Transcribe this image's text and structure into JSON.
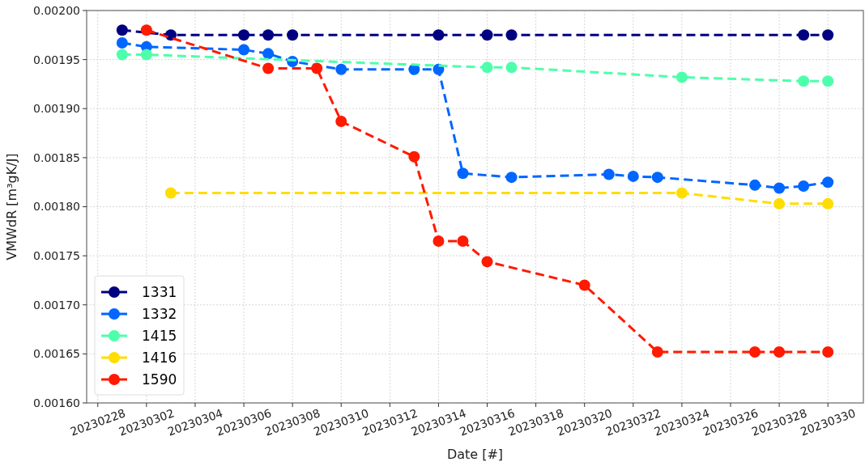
{
  "chart_data": {
    "type": "line",
    "xlabel": "Date [#]",
    "ylabel": "VMWdR [m³gK/J]",
    "xlim": [
      "2023-02-27T13:00",
      "2023-03-31T11:00"
    ],
    "xticks": [
      {
        "value": "2023-02-28",
        "label": "20230228"
      },
      {
        "value": "2023-03-02",
        "label": "20230302"
      },
      {
        "value": "2023-03-04",
        "label": "20230304"
      },
      {
        "value": "2023-03-06",
        "label": "20230306"
      },
      {
        "value": "2023-03-08",
        "label": "20230308"
      },
      {
        "value": "2023-03-10",
        "label": "20230310"
      },
      {
        "value": "2023-03-12",
        "label": "20230312"
      },
      {
        "value": "2023-03-14",
        "label": "20230314"
      },
      {
        "value": "2023-03-16",
        "label": "20230316"
      },
      {
        "value": "2023-03-18",
        "label": "20230318"
      },
      {
        "value": "2023-03-20",
        "label": "20230320"
      },
      {
        "value": "2023-03-22",
        "label": "20230322"
      },
      {
        "value": "2023-03-24",
        "label": "20230324"
      },
      {
        "value": "2023-03-26",
        "label": "20230326"
      },
      {
        "value": "2023-03-28",
        "label": "20230328"
      },
      {
        "value": "2023-03-30",
        "label": "20230330"
      }
    ],
    "ylim": [
      0.0016,
      0.002
    ],
    "yticks": [
      {
        "value": 0.0016,
        "label": "0.00160"
      },
      {
        "value": 0.00165,
        "label": "0.00165"
      },
      {
        "value": 0.0017,
        "label": "0.00170"
      },
      {
        "value": 0.00175,
        "label": "0.00175"
      },
      {
        "value": 0.0018,
        "label": "0.00180"
      },
      {
        "value": 0.00185,
        "label": "0.00185"
      },
      {
        "value": 0.0019,
        "label": "0.00190"
      },
      {
        "value": 0.00195,
        "label": "0.00195"
      },
      {
        "value": 0.002,
        "label": "0.00200"
      }
    ],
    "grid": true,
    "legend": "bottom left",
    "marker": "circle",
    "line_style": "dashed",
    "series": [
      {
        "name": "1331",
        "color": "#000080",
        "x": [
          "2023-03-01",
          "2023-03-03",
          "2023-03-06",
          "2023-03-07",
          "2023-03-08",
          "2023-03-14",
          "2023-03-16",
          "2023-03-17",
          "2023-03-29",
          "2023-03-30"
        ],
        "values": [
          0.00198,
          0.001975,
          0.001975,
          0.001975,
          0.001975,
          0.001975,
          0.001975,
          0.001975,
          0.001975,
          0.001975
        ]
      },
      {
        "name": "1332",
        "color": "#0066ff",
        "x": [
          "2023-03-01",
          "2023-03-02",
          "2023-03-06",
          "2023-03-07",
          "2023-03-08",
          "2023-03-10",
          "2023-03-13",
          "2023-03-14",
          "2023-03-15",
          "2023-03-17",
          "2023-03-21",
          "2023-03-22",
          "2023-03-23",
          "2023-03-27",
          "2023-03-28",
          "2023-03-29",
          "2023-03-30"
        ],
        "values": [
          0.001967,
          0.001963,
          0.00196,
          0.001956,
          0.001948,
          0.00194,
          0.00194,
          0.00194,
          0.001834,
          0.00183,
          0.001833,
          0.001831,
          0.00183,
          0.001822,
          0.001819,
          0.001821,
          0.001825
        ]
      },
      {
        "name": "1415",
        "color": "#4dffaa",
        "x": [
          "2023-03-01",
          "2023-03-02",
          "2023-03-16",
          "2023-03-17",
          "2023-03-24",
          "2023-03-29",
          "2023-03-30"
        ],
        "values": [
          0.001955,
          0.001955,
          0.001942,
          0.001942,
          0.001932,
          0.001928,
          0.001928
        ]
      },
      {
        "name": "1416",
        "color": "#ffdd00",
        "x": [
          "2023-03-03",
          "2023-03-24",
          "2023-03-28",
          "2023-03-30"
        ],
        "values": [
          0.001814,
          0.001814,
          0.001803,
          0.001803
        ]
      },
      {
        "name": "1590",
        "color": "#ff1a00",
        "x": [
          "2023-03-02",
          "2023-03-07",
          "2023-03-09",
          "2023-03-10",
          "2023-03-13",
          "2023-03-14",
          "2023-03-15",
          "2023-03-16",
          "2023-03-20",
          "2023-03-23",
          "2023-03-27",
          "2023-03-28",
          "2023-03-30"
        ],
        "values": [
          0.00198,
          0.001941,
          0.001941,
          0.001887,
          0.001851,
          0.001765,
          0.001765,
          0.001744,
          0.00172,
          0.001652,
          0.001652,
          0.001652,
          0.001652
        ]
      }
    ]
  }
}
